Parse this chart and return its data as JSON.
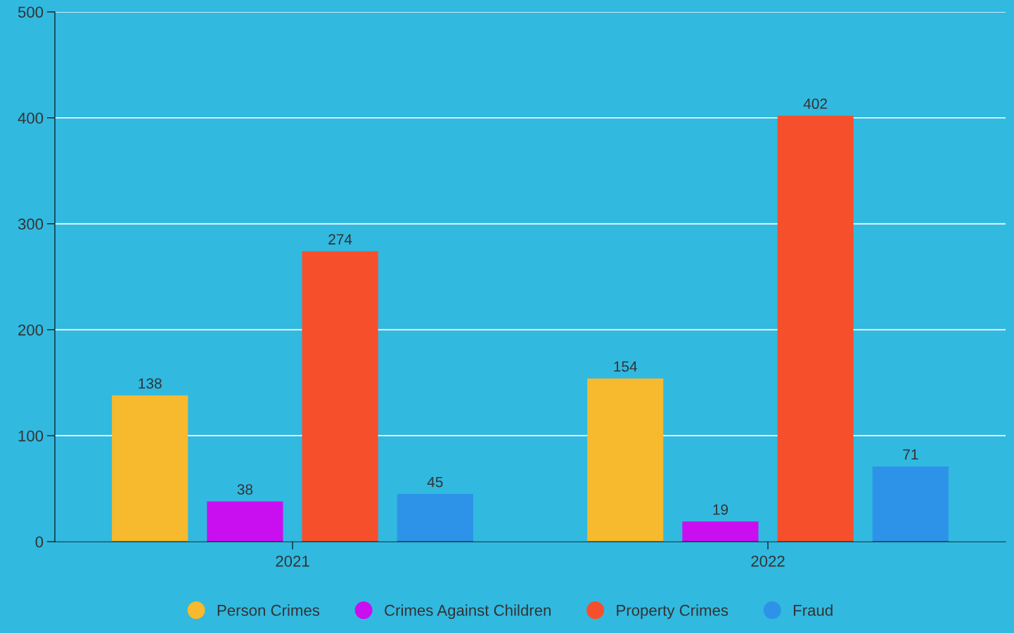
{
  "chart_data": {
    "type": "bar",
    "categories": [
      "2021",
      "2022"
    ],
    "series": [
      {
        "name": "Person Crimes",
        "color": "#f7b92d",
        "values": [
          138,
          154
        ]
      },
      {
        "name": "Crimes Against Children",
        "color": "#c90ff0",
        "values": [
          38,
          19
        ]
      },
      {
        "name": "Property Crimes",
        "color": "#f64f2c",
        "values": [
          274,
          402
        ]
      },
      {
        "name": "Fraud",
        "color": "#2d93e8",
        "values": [
          45,
          71
        ]
      }
    ],
    "ylim": [
      0,
      500
    ],
    "yticks": [
      0,
      100,
      200,
      300,
      400,
      500
    ],
    "grid": "y",
    "legend": "bottom",
    "marker": "circle",
    "data_labels": true
  }
}
